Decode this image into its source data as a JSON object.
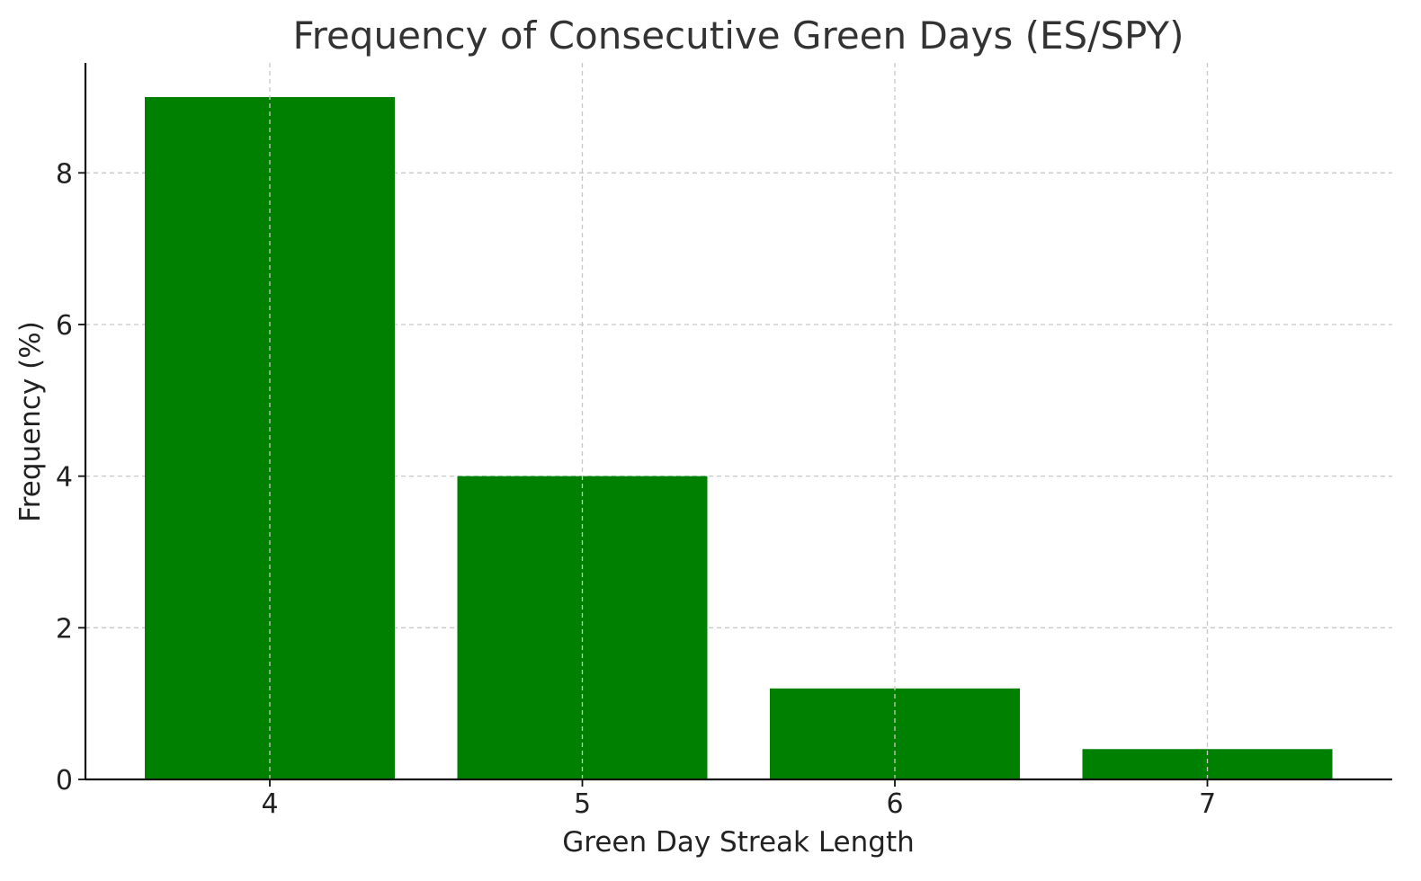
{
  "chart_data": {
    "type": "bar",
    "title": "Frequency of Consecutive Green Days (ES/SPY)",
    "xlabel": "Green Day Streak Length",
    "ylabel": "Frequency (%)",
    "categories": [
      "4",
      "5",
      "6",
      "7"
    ],
    "values": [
      9.0,
      4.0,
      1.2,
      0.4
    ],
    "ylim": [
      0,
      9.45
    ],
    "yticks": [
      "0",
      "2",
      "4",
      "6",
      "8"
    ],
    "grid": true,
    "bar_color": "#008000"
  }
}
